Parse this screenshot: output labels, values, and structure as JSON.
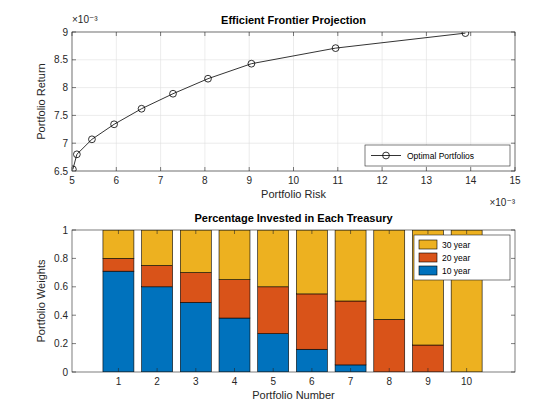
{
  "chart_data": [
    {
      "type": "line",
      "title": "Efficient Frontier Projection",
      "xlabel": "Portfolio Risk",
      "ylabel": "Portfolio Return",
      "x_exponent_label": "×10⁻³",
      "y_exponent_label": "×10⁻³",
      "x": [
        5.02,
        5.11,
        5.45,
        5.95,
        6.57,
        7.28,
        8.07,
        9.05,
        10.95,
        13.88
      ],
      "series": [
        {
          "name": "Optimal Portfolios",
          "color": "#000000",
          "marker": "circle",
          "line_style": "solid",
          "values": [
            6.53,
            6.8,
            7.07,
            7.34,
            7.62,
            7.89,
            8.16,
            8.43,
            8.71,
            8.98
          ]
        }
      ],
      "xlim": [
        5,
        15
      ],
      "xticks": [
        5,
        6,
        7,
        8,
        9,
        10,
        11,
        12,
        13,
        14,
        15
      ],
      "ylim": [
        6.5,
        9
      ],
      "yticks": [
        6.5,
        7,
        7.5,
        8,
        8.5,
        9
      ],
      "grid": true,
      "legend": "bottom-right"
    },
    {
      "type": "bar",
      "stacked": true,
      "title": "Percentage Invested in Each Treasury",
      "xlabel": "Portfolio Number",
      "ylabel": "Portfolio Weights",
      "x": [
        1,
        2,
        3,
        4,
        5,
        6,
        7,
        8,
        9,
        10
      ],
      "series": [
        {
          "name": "10 year",
          "color": "#0072bd",
          "values": [
            0.71,
            0.6,
            0.49,
            0.38,
            0.27,
            0.16,
            0.05,
            0,
            0,
            0
          ]
        },
        {
          "name": "20 year",
          "color": "#d95319",
          "values": [
            0.09,
            0.15,
            0.21,
            0.27,
            0.33,
            0.39,
            0.45,
            0.37,
            0.19,
            0
          ]
        },
        {
          "name": "30 year",
          "color": "#edb120",
          "values": [
            0.2,
            0.25,
            0.3,
            0.35,
            0.4,
            0.45,
            0.5,
            0.63,
            0.81,
            1.0
          ]
        }
      ],
      "xlim": [
        -0.2,
        11.25
      ],
      "xticks": [
        1,
        2,
        3,
        4,
        5,
        6,
        7,
        8,
        9,
        10
      ],
      "ylim": [
        0,
        1
      ],
      "yticks": [
        0,
        0.2,
        0.4,
        0.6,
        0.8,
        1
      ],
      "grid": false,
      "legend": "top-right"
    }
  ]
}
